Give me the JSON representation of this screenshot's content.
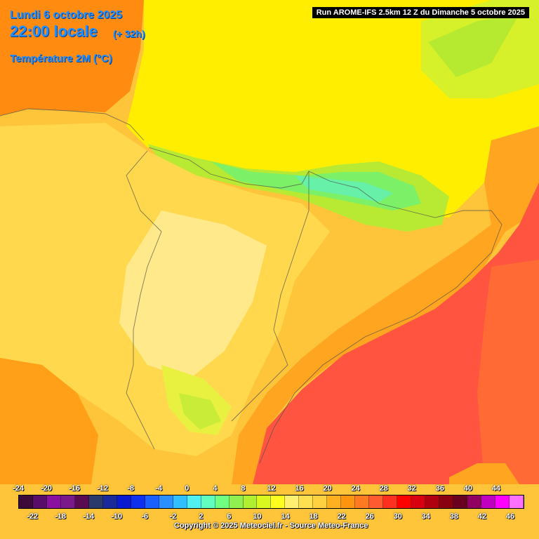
{
  "header": {
    "date": "Lundi 6 octobre 2025",
    "time": "22:00 locale",
    "lead": "(+ 32h)",
    "parameter": "Température 2M (°C)"
  },
  "run_label": "Run AROME-IFS 2.5km 12 Z du Dimanche 5 octobre 2025",
  "legend": {
    "values": [
      -24,
      -22,
      -20,
      -18,
      -16,
      -14,
      -12,
      -10,
      -8,
      -6,
      -4,
      -2,
      0,
      2,
      4,
      6,
      8,
      10,
      12,
      14,
      16,
      18,
      20,
      22,
      24,
      26,
      28,
      30,
      32,
      34,
      36,
      38,
      40,
      42,
      44,
      46
    ],
    "top_labels": [
      "-24",
      "-20",
      "-16",
      "-12",
      "-8",
      "-4",
      "0",
      "4",
      "8",
      "12",
      "16",
      "20",
      "24",
      "28",
      "32",
      "36",
      "40",
      "44"
    ],
    "bottom_labels": [
      "-22",
      "-18",
      "-14",
      "-10",
      "-6",
      "-2",
      "2",
      "6",
      "10",
      "14",
      "18",
      "22",
      "26",
      "30",
      "34",
      "38",
      "42",
      "46"
    ],
    "colors": [
      "#3d0a3a",
      "#5a0c6a",
      "#8a10a0",
      "#7a1a8a",
      "#5a0a50",
      "#2a3a6a",
      "#1a2a9a",
      "#0a1ad0",
      "#1030f0",
      "#1a60ff",
      "#2a90ff",
      "#30c0ff",
      "#50f0f0",
      "#60ffc0",
      "#70ff80",
      "#90f050",
      "#b0f030",
      "#d8f820",
      "#ffff20",
      "#fff070",
      "#ffe050",
      "#ffd040",
      "#ffb020",
      "#ff9410",
      "#ff7a20",
      "#ff5a30",
      "#ff3020",
      "#ff0000",
      "#d80010",
      "#b00010",
      "#8a0010",
      "#6a0020",
      "#900060",
      "#c000c0",
      "#ff00ff",
      "#ff70ff"
    ]
  },
  "copyright": "Copyright © 2025 Meteociel.fr - Source Meteo-France"
}
